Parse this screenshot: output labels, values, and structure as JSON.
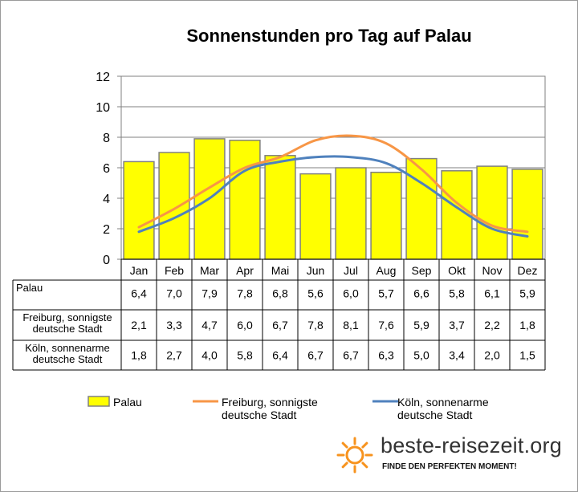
{
  "chart_data": {
    "type": "bar",
    "title": "Sonnenstunden pro Tag auf Palau",
    "categories": [
      "Jan",
      "Feb",
      "Mar",
      "Apr",
      "Mai",
      "Jun",
      "Jul",
      "Aug",
      "Sep",
      "Okt",
      "Nov",
      "Dez"
    ],
    "ylim": [
      0,
      12
    ],
    "yticks": [
      "0",
      "2",
      "4",
      "6",
      "8",
      "10",
      "12"
    ],
    "grid": true,
    "legend_position": "bottom",
    "series": [
      {
        "name": "Palau",
        "kind": "bar",
        "color": "#ffff00",
        "values": [
          6.4,
          7.0,
          7.9,
          7.8,
          6.8,
          5.6,
          6.0,
          5.7,
          6.6,
          5.8,
          6.1,
          5.9
        ],
        "labels": [
          "6,4",
          "7,0",
          "7,9",
          "7,8",
          "6,8",
          "5,6",
          "6,0",
          "5,7",
          "6,6",
          "5,8",
          "6,1",
          "5,9"
        ]
      },
      {
        "name": "Freiburg, sonnigste deutsche Stadt",
        "kind": "line",
        "color": "#f79646",
        "values": [
          2.1,
          3.3,
          4.7,
          6.0,
          6.7,
          7.8,
          8.1,
          7.6,
          5.9,
          3.7,
          2.2,
          1.8
        ],
        "labels": [
          "2,1",
          "3,3",
          "4,7",
          "6,0",
          "6,7",
          "7,8",
          "8,1",
          "7,6",
          "5,9",
          "3,7",
          "2,2",
          "1,8"
        ]
      },
      {
        "name": "Köln, sonnenarme deutsche Stadt",
        "kind": "line",
        "color": "#4f81bd",
        "values": [
          1.8,
          2.7,
          4.0,
          5.8,
          6.4,
          6.7,
          6.7,
          6.3,
          5.0,
          3.4,
          2.0,
          1.5
        ],
        "labels": [
          "1,8",
          "2,7",
          "4,0",
          "5,8",
          "6,4",
          "6,7",
          "6,7",
          "6,3",
          "5,0",
          "3,4",
          "2,0",
          "1,5"
        ]
      }
    ],
    "table_row_labels": [
      [
        "Palau"
      ],
      [
        "Freiburg, sonnigste",
        "deutsche Stadt"
      ],
      [
        "Köln, sonnenarme",
        "deutsche Stadt"
      ]
    ],
    "legend_labels": [
      [
        "Palau"
      ],
      [
        "Freiburg, sonnigste",
        "deutsche Stadt"
      ],
      [
        "Köln, sonnenarme",
        "deutsche Stadt"
      ]
    ]
  },
  "brand": {
    "name": "beste-reisezeit.org",
    "slogan": "FINDE DEN PERFEKTEN MOMENT!",
    "logo_icon": "sun-icon",
    "logo_color": "#f7931e"
  }
}
